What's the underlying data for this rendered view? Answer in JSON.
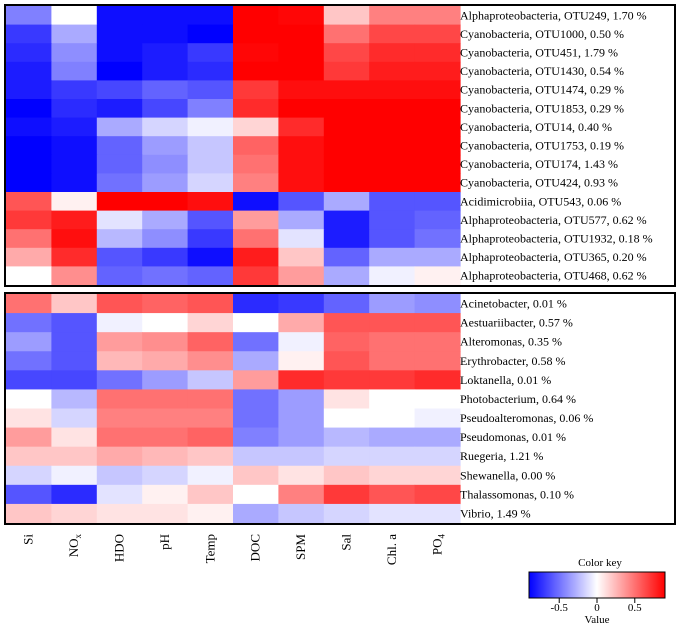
{
  "chart_data": {
    "type": "heatmap",
    "columns": [
      "Si",
      "NO",
      "HDO",
      "pH",
      "Temp",
      "DOC",
      "SPM",
      "Sal",
      "Chl. a",
      "PO"
    ],
    "column_subscripts": [
      "",
      "x",
      "",
      "",
      "",
      "",
      "",
      "",
      "",
      "4"
    ],
    "color_key": {
      "title": "Color key",
      "xlabel": "Value",
      "ticks": [
        "-0.5",
        "0",
        "0.5"
      ],
      "tick_values": [
        -0.5,
        0,
        0.5
      ],
      "range": [
        -0.9,
        0.9
      ],
      "low_color": "#0000ff",
      "mid_color": "#ffffff",
      "high_color": "#ff0000"
    },
    "panels": [
      {
        "name": "top",
        "rows": [
          {
            "label": "Alphaproteobacteria, OTU249, 1.70 %",
            "values": [
              -0.45,
              0.0,
              -0.85,
              -0.85,
              -0.85,
              0.9,
              0.88,
              0.2,
              0.45,
              0.45
            ]
          },
          {
            "label": "Cyanobacteria, OTU1000, 0.50 %",
            "values": [
              -0.7,
              -0.3,
              -0.85,
              -0.85,
              -0.9,
              0.95,
              0.9,
              0.5,
              0.65,
              0.65
            ]
          },
          {
            "label": "Cyanobacteria, OTU451, 1.79 %",
            "values": [
              -0.75,
              -0.4,
              -0.85,
              -0.8,
              -0.7,
              0.88,
              0.9,
              0.65,
              0.75,
              0.75
            ]
          },
          {
            "label": "Cyanobacteria, OTU1430, 0.54 %",
            "values": [
              -0.8,
              -0.45,
              -0.9,
              -0.8,
              -0.75,
              0.9,
              0.9,
              0.7,
              0.8,
              0.8
            ]
          },
          {
            "label": "Cyanobacteria, OTU1474, 0.29 %",
            "values": [
              -0.8,
              -0.7,
              -0.65,
              -0.55,
              -0.6,
              0.7,
              0.85,
              0.85,
              0.85,
              0.85
            ]
          },
          {
            "label": "Cyanobacteria, OTU1853, 0.29 %",
            "values": [
              -0.9,
              -0.75,
              -0.8,
              -0.65,
              -0.45,
              0.75,
              0.9,
              0.9,
              0.9,
              0.9
            ]
          },
          {
            "label": "Cyanobacteria, OTU14, 0.40 %",
            "values": [
              -0.85,
              -0.8,
              -0.3,
              -0.15,
              -0.05,
              0.15,
              0.75,
              0.9,
              0.9,
              0.9
            ]
          },
          {
            "label": "Cyanobacteria, OTU1753, 0.19 %",
            "values": [
              -0.9,
              -0.85,
              -0.55,
              -0.35,
              -0.2,
              0.55,
              0.85,
              0.9,
              0.9,
              0.9
            ]
          },
          {
            "label": "Cyanobacteria, OTU174, 1.43 %",
            "values": [
              -0.9,
              -0.85,
              -0.55,
              -0.4,
              -0.2,
              0.5,
              0.85,
              0.9,
              0.92,
              0.92
            ]
          },
          {
            "label": "Cyanobacteria, OTU424, 0.93 %",
            "values": [
              -0.9,
              -0.85,
              -0.5,
              -0.35,
              -0.15,
              0.45,
              0.85,
              0.9,
              0.9,
              0.9
            ]
          },
          {
            "label": "Acidimicrobiia, OTU543, 0.06 %",
            "values": [
              0.6,
              0.05,
              0.95,
              0.95,
              0.85,
              -0.85,
              -0.6,
              -0.3,
              -0.6,
              -0.6
            ]
          },
          {
            "label": "Alphaproteobacteria, OTU577, 0.62 %",
            "values": [
              0.7,
              0.8,
              -0.1,
              -0.3,
              -0.6,
              0.35,
              -0.3,
              -0.8,
              -0.6,
              -0.55
            ]
          },
          {
            "label": "Alphaproteobacteria, OTU1932, 0.18 %",
            "values": [
              0.5,
              0.85,
              -0.25,
              -0.4,
              -0.7,
              0.5,
              -0.1,
              -0.8,
              -0.6,
              -0.5
            ]
          },
          {
            "label": "Alphaproteobacteria, OTU365, 0.20 %",
            "values": [
              0.3,
              0.75,
              -0.6,
              -0.7,
              -0.85,
              0.8,
              0.2,
              -0.55,
              -0.3,
              -0.3
            ]
          },
          {
            "label": "Alphaproteobacteria, OTU468, 0.62 %",
            "values": [
              0.0,
              0.4,
              -0.55,
              -0.5,
              -0.55,
              0.7,
              0.35,
              -0.3,
              -0.05,
              0.05
            ]
          }
        ]
      },
      {
        "name": "bottom",
        "rows": [
          {
            "label": "Acinetobacter, 0.01 %",
            "values": [
              0.5,
              0.2,
              0.6,
              0.55,
              0.6,
              -0.75,
              -0.7,
              -0.55,
              -0.35,
              -0.4
            ]
          },
          {
            "label": "Aestuariibacter, 0.57 %",
            "values": [
              -0.5,
              -0.6,
              -0.05,
              0.0,
              0.15,
              0.0,
              0.3,
              0.6,
              0.6,
              0.6
            ]
          },
          {
            "label": "Alteromonas, 0.35 %",
            "values": [
              -0.35,
              -0.6,
              0.35,
              0.4,
              0.55,
              -0.5,
              -0.05,
              0.55,
              0.5,
              0.5
            ]
          },
          {
            "label": "Erythrobacter, 0.58 %",
            "values": [
              -0.5,
              -0.6,
              0.25,
              0.3,
              0.4,
              -0.3,
              0.05,
              0.6,
              0.5,
              0.5
            ]
          },
          {
            "label": "Loktanella, 0.01 %",
            "values": [
              -0.65,
              -0.65,
              -0.5,
              -0.35,
              -0.2,
              0.35,
              0.75,
              0.7,
              0.7,
              0.75
            ]
          },
          {
            "label": "Photobacterium, 0.64 %",
            "values": [
              0.0,
              -0.25,
              0.5,
              0.5,
              0.5,
              -0.5,
              -0.35,
              0.1,
              0.0,
              0.0
            ]
          },
          {
            "label": "Pseudoalteromonas, 0.06 %",
            "values": [
              0.1,
              -0.15,
              0.45,
              0.45,
              0.45,
              -0.5,
              -0.35,
              0.0,
              0.0,
              -0.05
            ]
          },
          {
            "label": "Pseudomonas, 0.01 %",
            "values": [
              0.35,
              0.1,
              0.5,
              0.5,
              0.55,
              -0.45,
              -0.35,
              -0.25,
              -0.3,
              -0.3
            ]
          },
          {
            "label": "Ruegeria, 1.21 %",
            "values": [
              0.2,
              0.2,
              0.3,
              0.25,
              0.2,
              -0.2,
              -0.2,
              -0.15,
              -0.15,
              -0.15
            ]
          },
          {
            "label": "Shewanella, 0.00 %",
            "values": [
              -0.15,
              -0.05,
              -0.2,
              -0.15,
              -0.05,
              0.2,
              0.1,
              0.2,
              0.15,
              0.15
            ]
          },
          {
            "label": "Thalassomonas, 0.10 %",
            "values": [
              -0.6,
              -0.75,
              -0.1,
              0.05,
              0.2,
              0.0,
              0.45,
              0.7,
              0.6,
              0.65
            ]
          },
          {
            "label": "Vibrio, 1.49 %",
            "values": [
              0.2,
              0.15,
              0.1,
              0.1,
              0.05,
              -0.3,
              -0.2,
              -0.15,
              -0.1,
              -0.1
            ]
          }
        ]
      }
    ]
  }
}
